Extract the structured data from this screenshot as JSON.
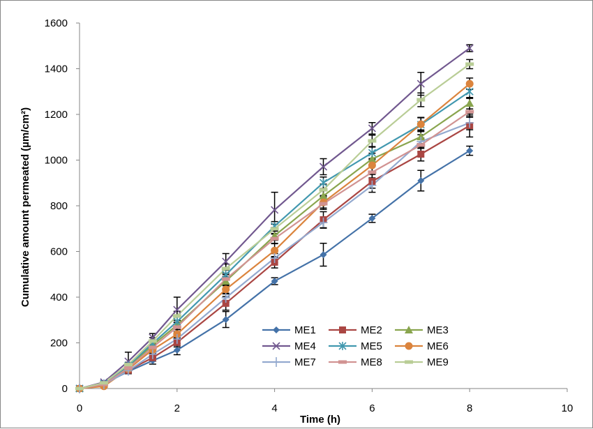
{
  "chart_data": {
    "type": "line",
    "title": "",
    "xlabel": "Time (h)",
    "ylabel": "Cumulative amount permeated (µm/cm²)",
    "xlim": [
      0,
      10
    ],
    "ylim": [
      0,
      1600
    ],
    "xticks": [
      0,
      2,
      4,
      6,
      8,
      10
    ],
    "yticks": [
      0,
      200,
      400,
      600,
      800,
      1000,
      1200,
      1400,
      1600
    ],
    "grid": false,
    "legend_position": "bottom-center",
    "x": [
      0,
      0.5,
      1,
      1.5,
      2,
      3,
      4,
      5,
      6,
      7,
      8
    ],
    "series": [
      {
        "name": "ME1",
        "color": "#4472A8",
        "marker": "diamond",
        "values": [
          0,
          20,
          75,
          122,
          168,
          302,
          470,
          586,
          745,
          910,
          1041
        ],
        "errors": [
          0,
          5,
          10,
          15,
          20,
          35,
          15,
          50,
          18,
          45,
          20
        ]
      },
      {
        "name": "ME2",
        "color": "#AA4643",
        "marker": "square",
        "values": [
          0,
          18,
          80,
          135,
          202,
          373,
          553,
          739,
          907,
          1026,
          1151
        ],
        "errors": [
          0,
          5,
          10,
          15,
          20,
          30,
          25,
          35,
          30,
          30,
          50
        ]
      },
      {
        "name": "ME3",
        "color": "#89A54E",
        "marker": "triangle",
        "values": [
          0,
          20,
          95,
          190,
          278,
          470,
          669,
          843,
          1005,
          1102,
          1249
        ],
        "errors": [
          0,
          5,
          10,
          15,
          20,
          20,
          20,
          25,
          25,
          30,
          25
        ]
      },
      {
        "name": "ME4",
        "color": "#71588F",
        "marker": "x",
        "values": [
          0,
          28,
          119,
          223,
          345,
          556,
          782,
          971,
          1139,
          1334,
          1490
        ],
        "errors": [
          0,
          6,
          40,
          18,
          55,
          35,
          77,
          35,
          25,
          50,
          15
        ]
      },
      {
        "name": "ME5",
        "color": "#4198AF",
        "marker": "asterisk",
        "values": [
          0,
          22,
          100,
          198,
          293,
          498,
          711,
          901,
          1032,
          1155,
          1300
        ],
        "errors": [
          0,
          5,
          10,
          15,
          20,
          20,
          20,
          25,
          25,
          30,
          30
        ]
      },
      {
        "name": "ME6",
        "color": "#DB843D",
        "marker": "circle",
        "values": [
          0,
          10,
          85,
          170,
          238,
          434,
          604,
          815,
          977,
          1157,
          1334
        ],
        "errors": [
          0,
          5,
          10,
          15,
          20,
          20,
          30,
          25,
          25,
          30,
          25
        ]
      },
      {
        "name": "ME7",
        "color": "#93A9CF",
        "marker": "plus",
        "values": [
          0,
          18,
          78,
          150,
          217,
          397,
          571,
          727,
          889,
          1081,
          1163
        ],
        "errors": [
          0,
          5,
          10,
          15,
          20,
          20,
          20,
          25,
          30,
          30,
          30
        ]
      },
      {
        "name": "ME8",
        "color": "#D19392",
        "marker": "dash",
        "values": [
          0,
          18,
          90,
          180,
          269,
          479,
          656,
          809,
          947,
          1066,
          1212
        ],
        "errors": [
          0,
          5,
          10,
          15,
          20,
          20,
          20,
          25,
          25,
          30,
          25
        ]
      },
      {
        "name": "ME9",
        "color": "#B9CD96",
        "marker": "dash",
        "values": [
          0,
          25,
          105,
          208,
          318,
          525,
          699,
          870,
          1084,
          1264,
          1420
        ],
        "errors": [
          0,
          5,
          10,
          15,
          20,
          20,
          20,
          25,
          25,
          30,
          20
        ]
      }
    ]
  }
}
